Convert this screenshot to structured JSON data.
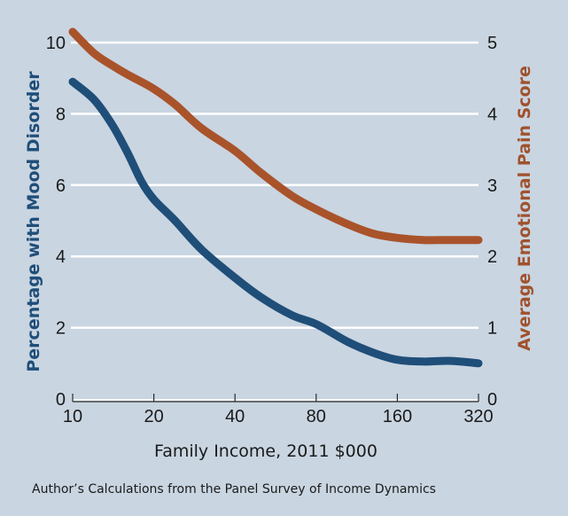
{
  "chart_data": {
    "type": "line",
    "title": "",
    "xlabel": "Family Income, 2011 $000",
    "ylabel": "Percentage with Mood Disorder",
    "ylabel_right": "Average Emotional Pain Score",
    "source": "Author’s Calculations from the Panel Survey of Income Dynamics",
    "x_scale": "log2",
    "xlim": [
      10,
      320
    ],
    "x_ticks": [
      10,
      20,
      40,
      80,
      160,
      320
    ],
    "x_tick_labels": [
      "10",
      "20",
      "40",
      "80",
      "160",
      "320"
    ],
    "ylim": [
      0,
      10
    ],
    "y_ticks": [
      0,
      2,
      4,
      6,
      8,
      10
    ],
    "y_tick_labels": [
      "0",
      "2",
      "4",
      "6",
      "8",
      "10"
    ],
    "ylim_right": [
      0,
      5
    ],
    "y_ticks_right": [
      0,
      1,
      2,
      3,
      4,
      5
    ],
    "y_tick_labels_right": [
      "0",
      "1",
      "2",
      "3",
      "4",
      "5"
    ],
    "grid": true,
    "legend": "none",
    "series": [
      {
        "name": "Percentage with Mood Disorder",
        "axis": "left",
        "color": "#1f4e79",
        "x": [
          10,
          12,
          14,
          16,
          18,
          20,
          24,
          30,
          40,
          50,
          65,
          80,
          105,
          130,
          160,
          200,
          250,
          320
        ],
        "values": [
          8.9,
          8.4,
          7.7,
          6.9,
          6.1,
          5.6,
          5.0,
          4.2,
          3.4,
          2.85,
          2.35,
          2.1,
          1.6,
          1.3,
          1.1,
          1.05,
          1.07,
          1.0
        ]
      },
      {
        "name": "Average Emotional Pain Score",
        "axis": "right",
        "color": "#a9532b",
        "x": [
          10,
          12,
          14,
          16,
          20,
          24,
          30,
          40,
          50,
          65,
          80,
          105,
          130,
          160,
          200,
          250,
          320
        ],
        "values": [
          5.15,
          4.85,
          4.68,
          4.55,
          4.35,
          4.13,
          3.8,
          3.48,
          3.17,
          2.85,
          2.66,
          2.45,
          2.32,
          2.26,
          2.23,
          2.23,
          2.23
        ]
      }
    ]
  }
}
